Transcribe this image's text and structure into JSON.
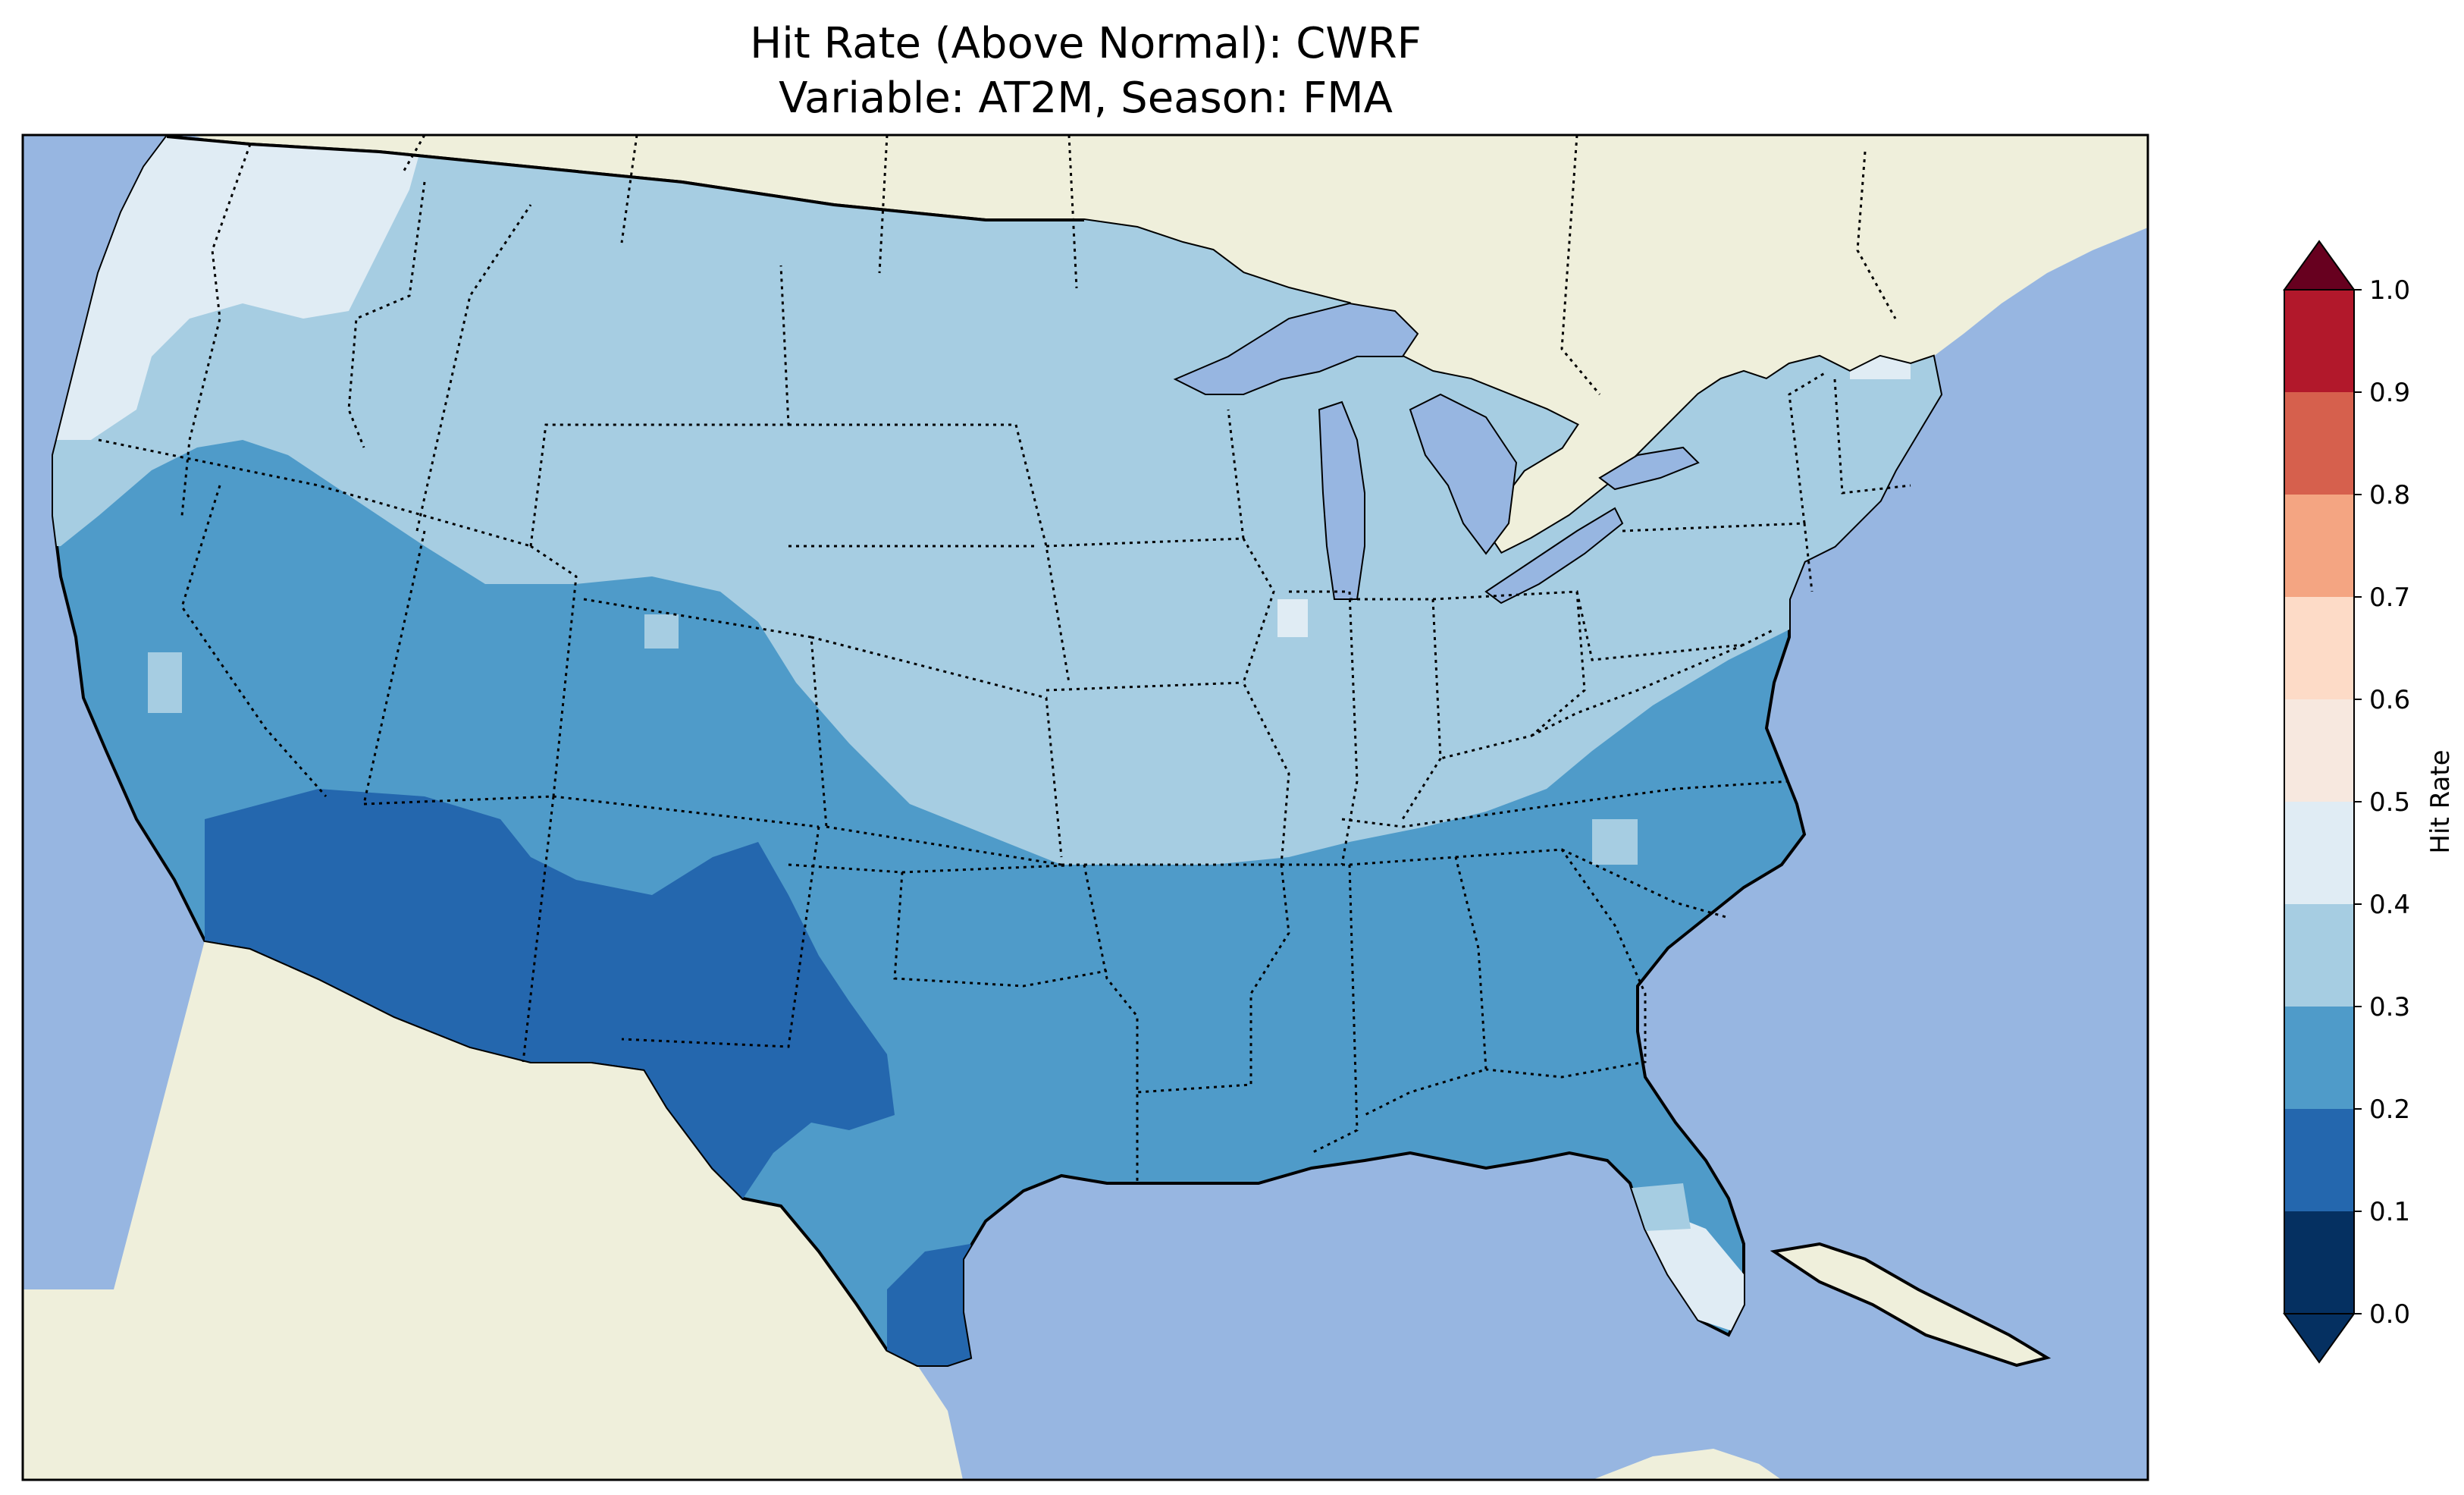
{
  "title": {
    "line1": "Hit Rate (Above Normal): CWRF",
    "line2": "Variable: AT2M, Season: FMA"
  },
  "map": {
    "extent": "Contiguous United States (CONUS)",
    "ocean_color": "#97b6e1",
    "land_color": "#efefdb"
  },
  "colorbar": {
    "label": "Hit Rate",
    "ticks": [
      "0.0",
      "0.1",
      "0.2",
      "0.3",
      "0.4",
      "0.5",
      "0.6",
      "0.7",
      "0.8",
      "0.9",
      "1.0"
    ],
    "bins": [
      {
        "range": [
          0.0,
          0.1
        ],
        "color": "#053061"
      },
      {
        "range": [
          0.1,
          0.2
        ],
        "color": "#2166ac"
      },
      {
        "range": [
          0.2,
          0.3
        ],
        "color": "#4393c3"
      },
      {
        "range": [
          0.3,
          0.4
        ],
        "color": "#92c5de"
      },
      {
        "range": [
          0.4,
          0.5
        ],
        "color": "#d1e5f0"
      },
      {
        "range": [
          0.5,
          0.6
        ],
        "color": "#f7f7f7"
      },
      {
        "range": [
          0.6,
          0.7
        ],
        "color": "#fddbc7"
      },
      {
        "range": [
          0.7,
          0.8
        ],
        "color": "#f4a582"
      },
      {
        "range": [
          0.8,
          0.9
        ],
        "color": "#d6604d"
      },
      {
        "range": [
          0.9,
          1.0
        ],
        "color": "#b2182b"
      }
    ],
    "under_color": "#053061",
    "over_color": "#67001f"
  },
  "regions": [
    {
      "name": "pacific-northwest-coast",
      "category": "0.4-0.5",
      "color": "#e0ecf4"
    },
    {
      "name": "northern-tier",
      "category": "0.3-0.4",
      "color": "#a6cde2"
    },
    {
      "name": "southwest-interior",
      "category": "0.2-0.3",
      "color": "#4f9bc9"
    },
    {
      "name": "desert-southwest",
      "category": "0.1-0.2",
      "color": "#2467ae"
    },
    {
      "name": "southern-plains-southeast",
      "category": "0.2-0.3",
      "color": "#4f9bc9"
    },
    {
      "name": "south-texas",
      "category": "0.1-0.2",
      "color": "#2467ae"
    },
    {
      "name": "south-florida",
      "category": "0.4-0.5",
      "color": "#e0ecf4"
    }
  ]
}
